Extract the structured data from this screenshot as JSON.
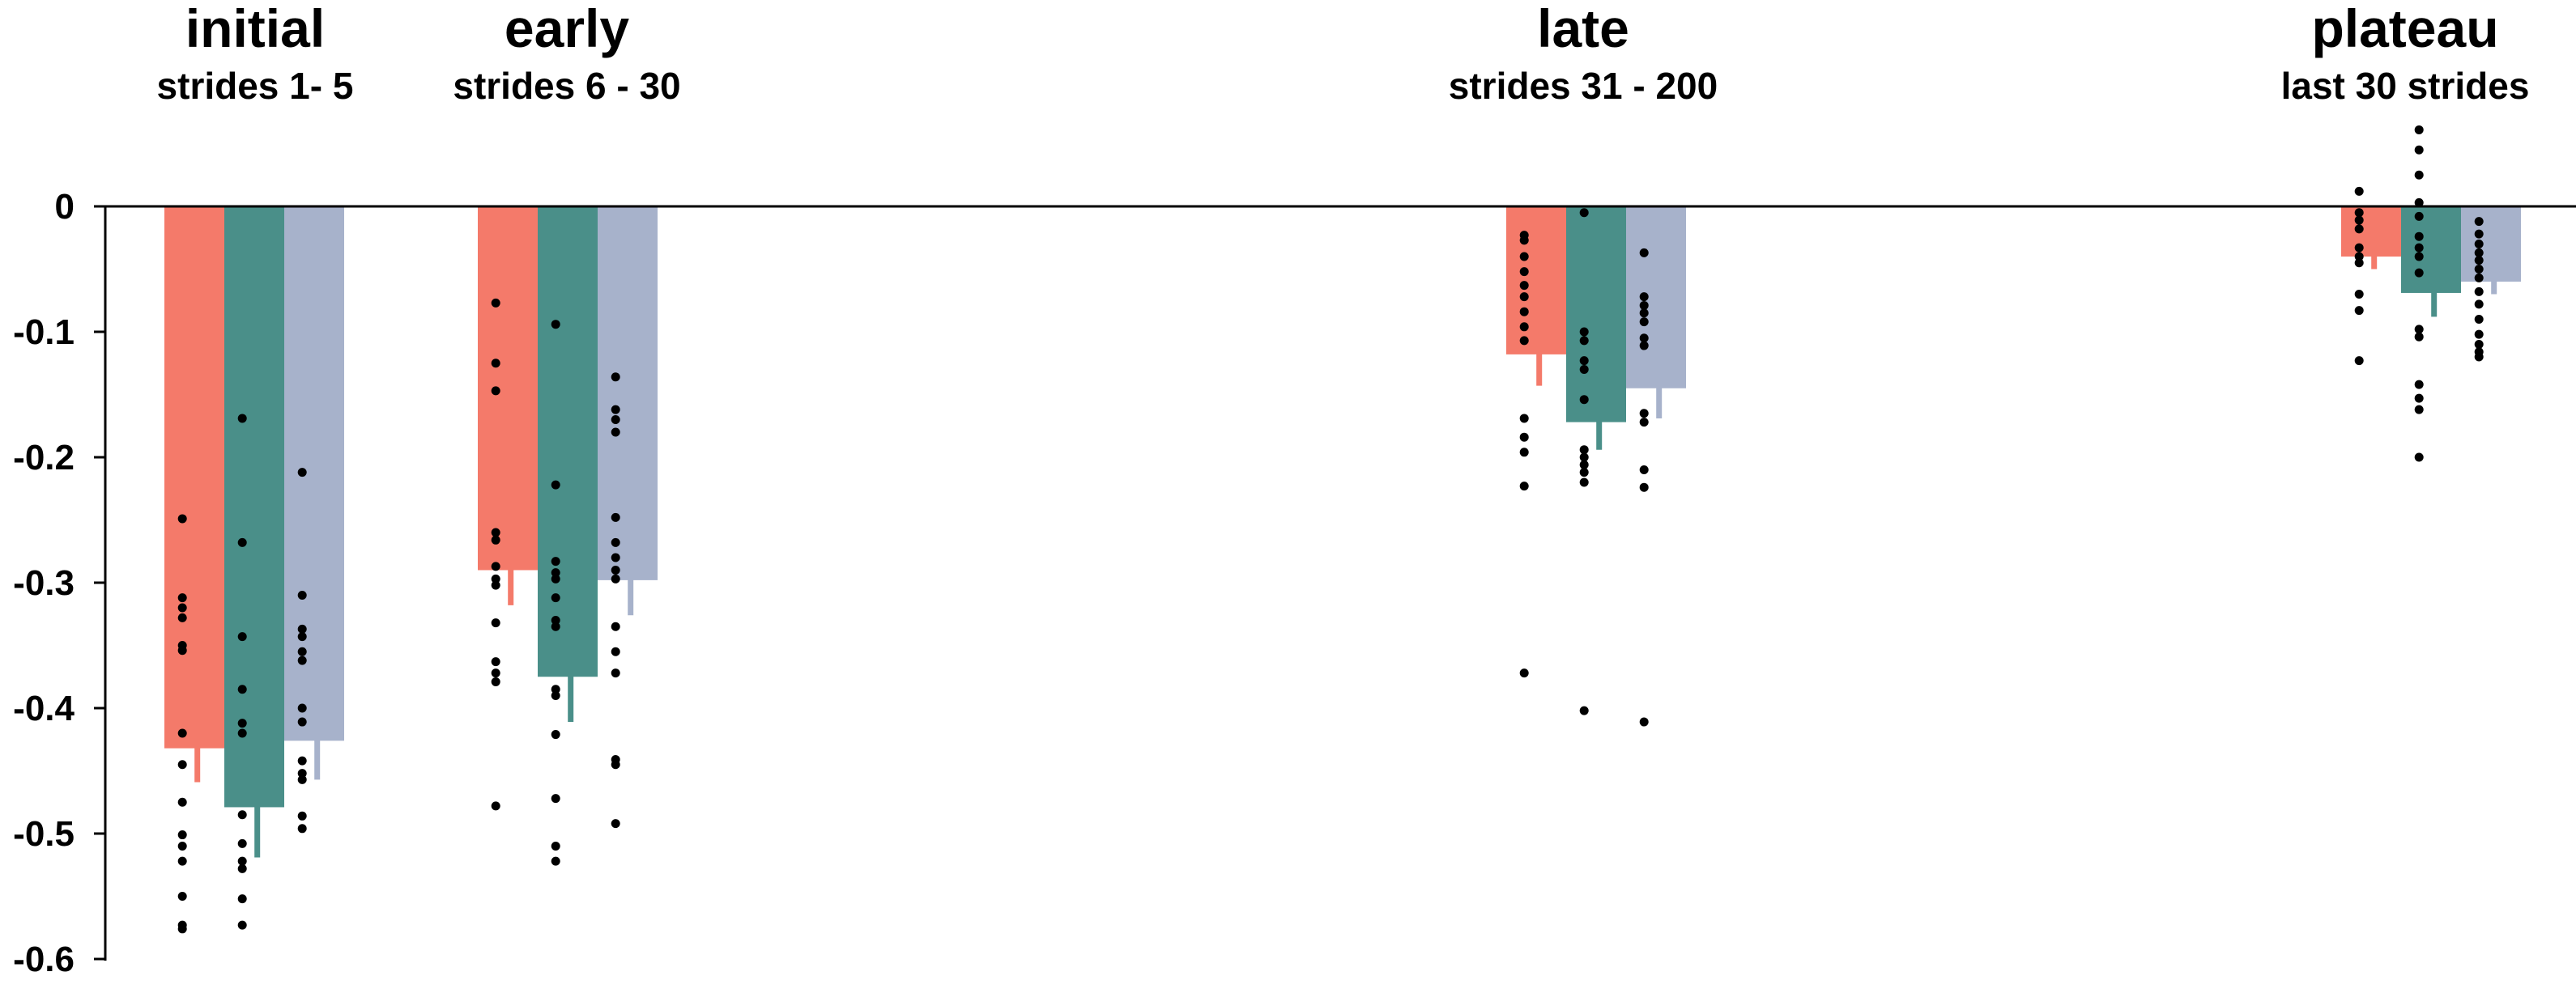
{
  "chart_data": {
    "type": "bar",
    "ylim": [
      -0.6,
      0
    ],
    "yticks": [
      {
        "value": 0,
        "label": "0"
      },
      {
        "value": -0.1,
        "label": "-0.1"
      },
      {
        "value": -0.2,
        "label": "-0.2"
      },
      {
        "value": -0.3,
        "label": "-0.3"
      },
      {
        "value": -0.4,
        "label": "-0.4"
      },
      {
        "value": -0.5,
        "label": "-0.5"
      },
      {
        "value": -0.6,
        "label": "-0.6"
      }
    ],
    "colors": [
      "#f47a6a",
      "#4a8f89",
      "#a7b2cb"
    ],
    "groups": [
      {
        "title": "initial",
        "subtitle": "strides 1- 5",
        "bars": [
          {
            "mean": -0.432,
            "err": 0.027,
            "points": [
              -0.249,
              -0.312,
              -0.32,
              -0.328,
              -0.35,
              -0.354,
              -0.42,
              -0.445,
              -0.475,
              -0.501,
              -0.51,
              -0.522,
              -0.55,
              -0.573,
              -0.576
            ]
          },
          {
            "mean": -0.479,
            "err": 0.04,
            "points": [
              -0.169,
              -0.268,
              -0.343,
              -0.385,
              -0.412,
              -0.42,
              -0.485,
              -0.508,
              -0.522,
              -0.528,
              -0.552,
              -0.573
            ]
          },
          {
            "mean": -0.426,
            "err": 0.031,
            "points": [
              -0.212,
              -0.31,
              -0.337,
              -0.343,
              -0.355,
              -0.362,
              -0.4,
              -0.411,
              -0.442,
              -0.452,
              -0.457,
              -0.486,
              -0.496
            ]
          }
        ]
      },
      {
        "title": "early",
        "subtitle": "strides 6 - 30",
        "bars": [
          {
            "mean": -0.29,
            "err": 0.028,
            "points": [
              -0.077,
              -0.125,
              -0.147,
              -0.26,
              -0.266,
              -0.287,
              -0.297,
              -0.302,
              -0.332,
              -0.363,
              -0.372,
              -0.379,
              -0.478
            ]
          },
          {
            "mean": -0.375,
            "err": 0.036,
            "points": [
              -0.094,
              -0.222,
              -0.283,
              -0.292,
              -0.297,
              -0.312,
              -0.33,
              -0.335,
              -0.385,
              -0.39,
              -0.421,
              -0.472,
              -0.51,
              -0.522
            ]
          },
          {
            "mean": -0.298,
            "err": 0.028,
            "points": [
              -0.136,
              -0.162,
              -0.17,
              -0.18,
              -0.248,
              -0.268,
              -0.28,
              -0.29,
              -0.297,
              -0.335,
              -0.355,
              -0.372,
              -0.441,
              -0.445,
              -0.492
            ]
          }
        ]
      },
      {
        "title": "late",
        "subtitle": "strides 31 - 200",
        "bars": [
          {
            "mean": -0.118,
            "err": 0.025,
            "points": [
              -0.023,
              -0.027,
              -0.04,
              -0.052,
              -0.063,
              -0.072,
              -0.084,
              -0.096,
              -0.107,
              -0.169,
              -0.184,
              -0.196,
              -0.223,
              -0.372
            ]
          },
          {
            "mean": -0.172,
            "err": 0.022,
            "points": [
              -0.005,
              -0.1,
              -0.107,
              -0.123,
              -0.13,
              -0.154,
              -0.194,
              -0.2,
              -0.206,
              -0.212,
              -0.22,
              -0.402
            ]
          },
          {
            "mean": -0.145,
            "err": 0.024,
            "points": [
              -0.037,
              -0.072,
              -0.079,
              -0.085,
              -0.092,
              -0.105,
              -0.111,
              -0.165,
              -0.172,
              -0.21,
              -0.224,
              -0.411
            ]
          }
        ]
      },
      {
        "title": "plateau",
        "subtitle": "last 30 strides",
        "bars": [
          {
            "mean": -0.04,
            "err": 0.01,
            "points": [
              0.012,
              -0.005,
              -0.011,
              -0.018,
              -0.033,
              -0.04,
              -0.045,
              -0.07,
              -0.083,
              -0.123
            ]
          },
          {
            "mean": -0.069,
            "err": 0.019,
            "points": [
              0.061,
              0.045,
              0.025,
              0.003,
              -0.008,
              -0.024,
              -0.033,
              -0.04,
              -0.053,
              -0.098,
              -0.104,
              -0.142,
              -0.153,
              -0.162,
              -0.2
            ]
          },
          {
            "mean": -0.06,
            "err": 0.01,
            "points": [
              -0.012,
              -0.022,
              -0.03,
              -0.037,
              -0.043,
              -0.05,
              -0.057,
              -0.068,
              -0.078,
              -0.09,
              -0.102,
              -0.11,
              -0.116,
              -0.12
            ]
          }
        ]
      }
    ]
  }
}
